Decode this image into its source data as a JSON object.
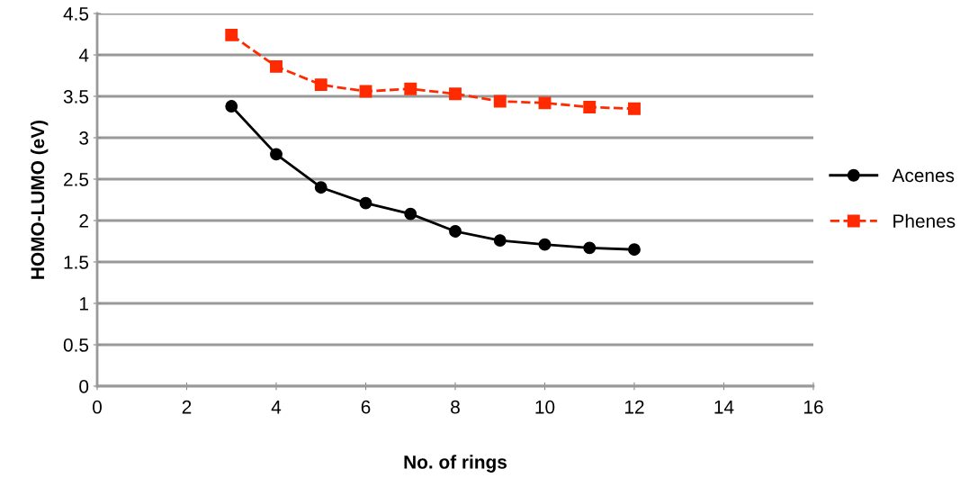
{
  "chart_data": {
    "type": "line",
    "xlabel": "No. of rings",
    "ylabel": "HOMO-LUMO (eV)",
    "x": [
      3,
      4,
      5,
      6,
      7,
      8,
      9,
      10,
      11,
      12
    ],
    "series": [
      {
        "name": "Acenes",
        "color": "#000000",
        "marker": "circle",
        "line_style": "solid",
        "values": [
          3.38,
          2.8,
          2.4,
          2.21,
          2.08,
          1.87,
          1.76,
          1.71,
          1.67,
          1.65
        ]
      },
      {
        "name": "Phenes",
        "color": "#ff2a00",
        "marker": "square",
        "line_style": "dashed",
        "values": [
          4.24,
          3.86,
          3.64,
          3.56,
          3.59,
          3.53,
          3.44,
          3.42,
          3.37,
          3.35
        ]
      }
    ],
    "xlim": [
      0,
      16
    ],
    "xticks": [
      0,
      2,
      4,
      6,
      8,
      10,
      12,
      14,
      16
    ],
    "ylim": [
      0,
      4.5
    ],
    "yticks": [
      0,
      0.5,
      1,
      1.5,
      2,
      2.5,
      3,
      3.5,
      4,
      4.5
    ],
    "grid": "y",
    "legend": "right"
  }
}
